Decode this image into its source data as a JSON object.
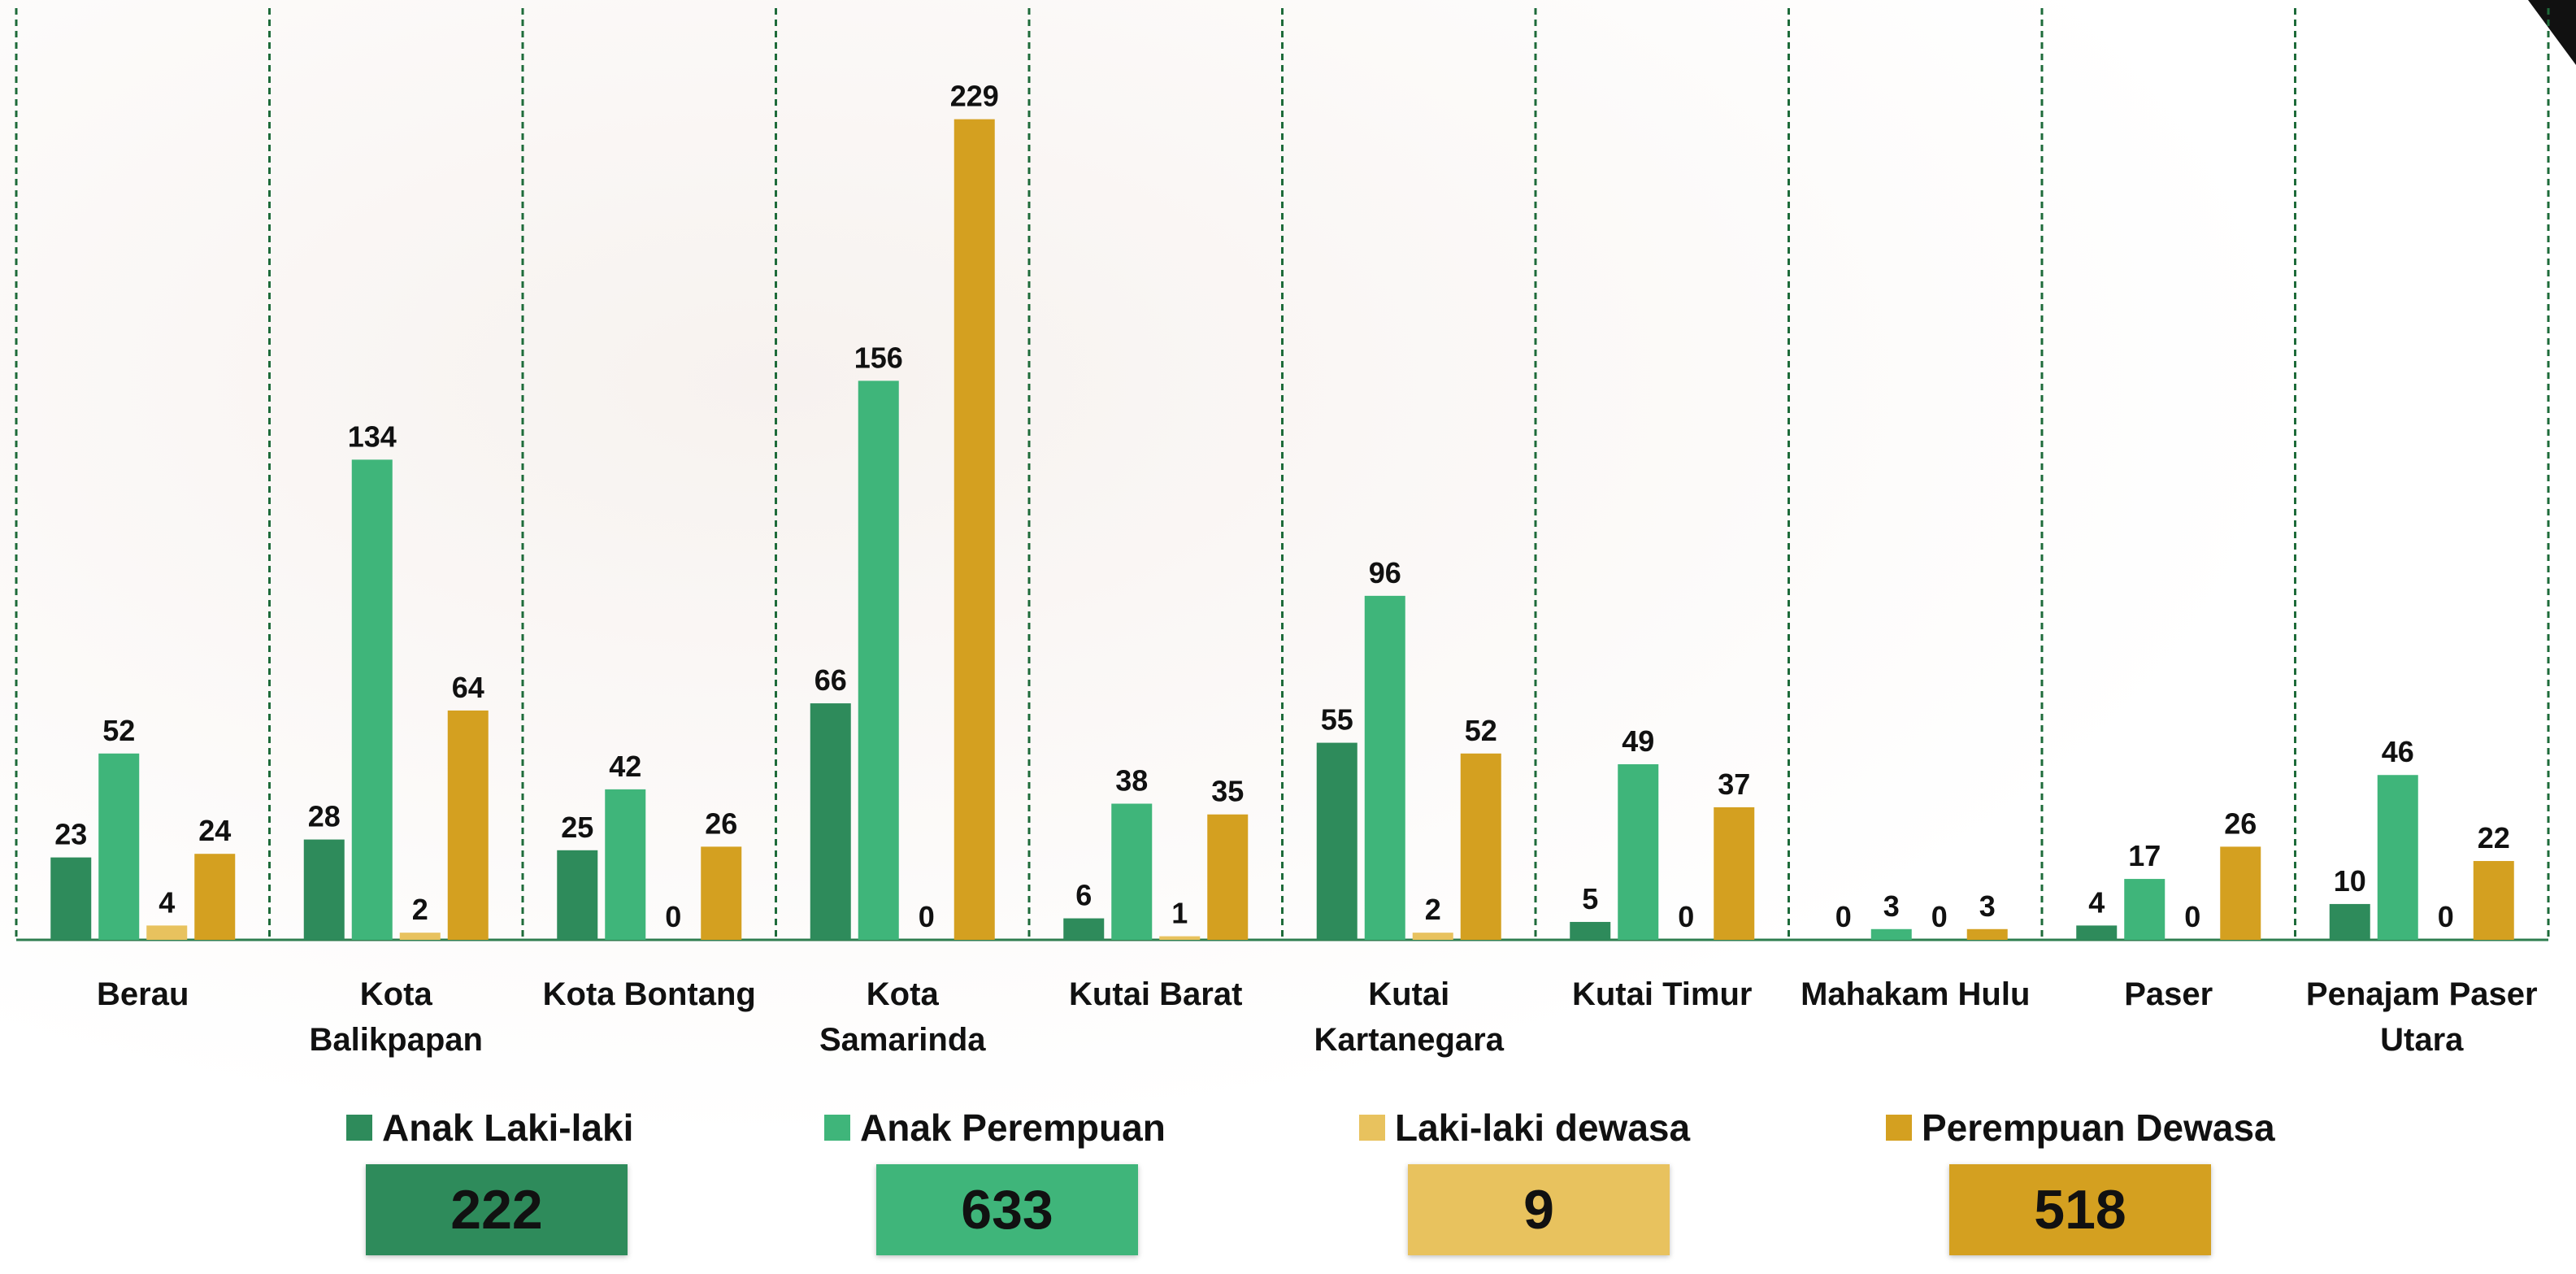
{
  "chart_data": {
    "type": "bar",
    "categories": [
      "Berau",
      "Kota Balikpapan",
      "Kota Bontang",
      "Kota Samarinda",
      "Kutai Barat",
      "Kutai Kartanegara",
      "Kutai Timur",
      "Mahakam Hulu",
      "Paser",
      "Penajam Paser Utara"
    ],
    "series": [
      {
        "name": "Anak Laki-laki",
        "color": "#2e8b5b",
        "values": [
          23,
          28,
          25,
          66,
          6,
          55,
          5,
          0,
          4,
          10
        ]
      },
      {
        "name": "Anak Perempuan",
        "color": "#3fb57a",
        "values": [
          52,
          134,
          42,
          156,
          38,
          96,
          49,
          3,
          17,
          46
        ]
      },
      {
        "name": "Laki-laki dewasa",
        "color": "#e8c25e",
        "values": [
          4,
          2,
          0,
          0,
          1,
          2,
          0,
          0,
          0,
          0
        ]
      },
      {
        "name": "Perempuan Dewasa",
        "color": "#d4a020",
        "values": [
          24,
          64,
          26,
          229,
          35,
          52,
          37,
          3,
          26,
          22
        ]
      }
    ],
    "totals": [
      222,
      633,
      9,
      518
    ],
    "ylim": [
      0,
      260
    ]
  }
}
